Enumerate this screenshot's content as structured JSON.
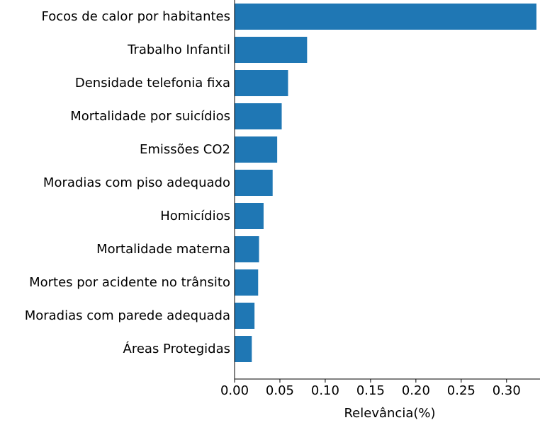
{
  "chart_data": {
    "type": "bar",
    "orientation": "horizontal",
    "title": "",
    "xlabel": "Relevância(%)",
    "ylabel": "",
    "xlim": [
      0,
      0.333
    ],
    "xticks": [
      0.0,
      0.05,
      0.1,
      0.15,
      0.2,
      0.25,
      0.3
    ],
    "xtick_labels": [
      "0.00",
      "0.05",
      "0.10",
      "0.15",
      "0.20",
      "0.25",
      "0.30"
    ],
    "bar_color": "#1f77b4",
    "grid": false,
    "categories": [
      "Focos de calor por habitantes",
      "Trabalho Infantil",
      "Densidade telefonia fixa",
      "Mortalidade por suicídios",
      "Emissões CO2",
      "Moradias com piso adequado",
      "Homicídios",
      "Mortalidade materna",
      "Mortes por acidente no trânsito",
      "Moradias com parede adequada",
      "Áreas Protegidas"
    ],
    "values": [
      0.333,
      0.08,
      0.059,
      0.052,
      0.047,
      0.042,
      0.032,
      0.027,
      0.026,
      0.022,
      0.019
    ]
  }
}
